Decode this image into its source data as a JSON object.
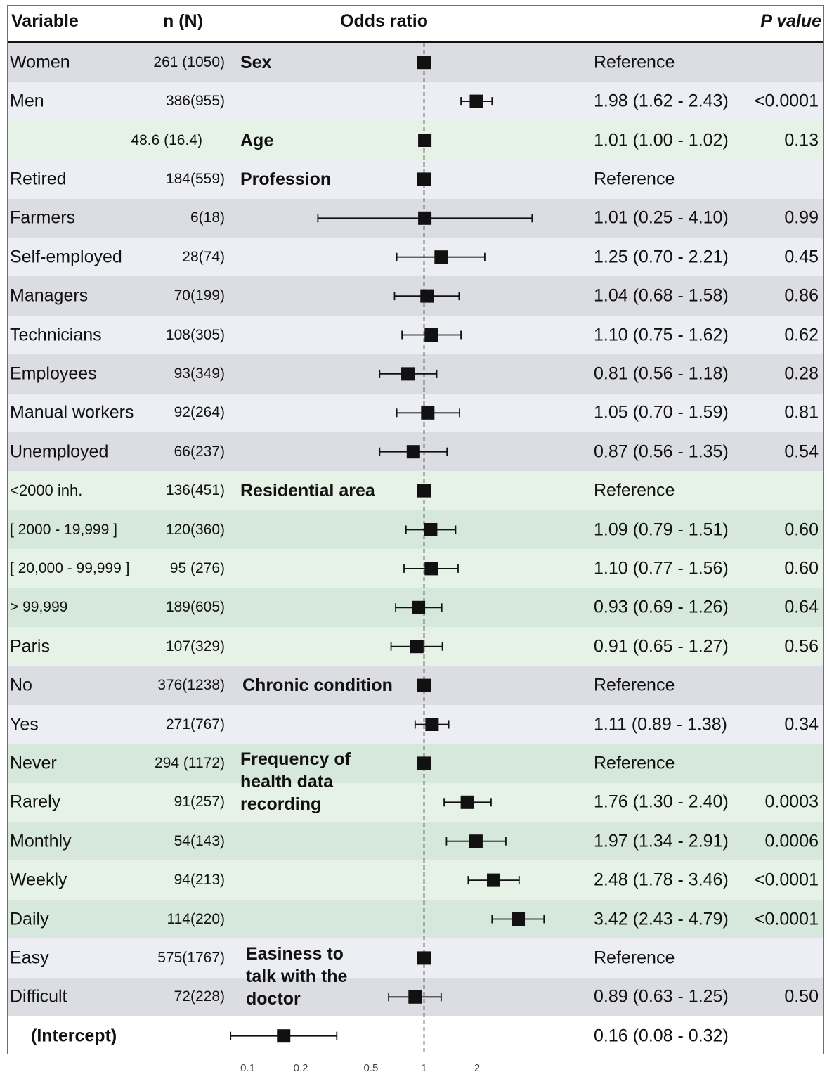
{
  "headers": {
    "variable": "Variable",
    "n": "n (N)",
    "odds_ratio": "Odds ratio",
    "p_value": "P value"
  },
  "colors": {
    "gray_dark": "#dcdde2",
    "gray_light": "#eceef3",
    "green_light": "#e5f2e5",
    "green_dark": "#d6e7db",
    "white": "#ffffff",
    "marker": "#111111",
    "reference_line": "#222222"
  },
  "rows": [
    {
      "label": "Women",
      "n": "261 (1050)",
      "ci": "Reference",
      "p": "",
      "or": 1,
      "lo": null,
      "hi": null,
      "bg": "gray_dark"
    },
    {
      "label": "Men",
      "n": "386(955)",
      "ci": "1.98 (1.62 - 2.43)",
      "p": "<0.0001",
      "or": 1.98,
      "lo": 1.62,
      "hi": 2.43,
      "bg": "gray_light"
    },
    {
      "label": "",
      "n": "48.6 (16.4)",
      "ci": "1.01 (1.00 - 1.02)",
      "p": "0.13",
      "or": 1.01,
      "lo": 1.0,
      "hi": 1.02,
      "bg": "green_light"
    },
    {
      "label": "Retired",
      "n": "184(559)",
      "ci": "Reference",
      "p": "",
      "or": 1,
      "lo": null,
      "hi": null,
      "bg": "gray_light"
    },
    {
      "label": "Farmers",
      "n": "6(18)",
      "ci": "1.01 (0.25 - 4.10)",
      "p": "0.99",
      "or": 1.01,
      "lo": 0.25,
      "hi": 4.1,
      "bg": "gray_dark"
    },
    {
      "label": "Self-employed",
      "n": "28(74)",
      "ci": "1.25 (0.70 - 2.21)",
      "p": "0.45",
      "or": 1.25,
      "lo": 0.7,
      "hi": 2.21,
      "bg": "gray_light"
    },
    {
      "label": "Managers",
      "n": "70(199)",
      "ci": "1.04 (0.68 - 1.58)",
      "p": "0.86",
      "or": 1.04,
      "lo": 0.68,
      "hi": 1.58,
      "bg": "gray_dark"
    },
    {
      "label": "Technicians",
      "n": "108(305)",
      "ci": "1.10 (0.75 - 1.62)",
      "p": "0.62",
      "or": 1.1,
      "lo": 0.75,
      "hi": 1.62,
      "bg": "gray_light"
    },
    {
      "label": "Employees",
      "n": "93(349)",
      "ci": "0.81 (0.56 - 1.18)",
      "p": "0.28",
      "or": 0.81,
      "lo": 0.56,
      "hi": 1.18,
      "bg": "gray_dark"
    },
    {
      "label": "Manual workers",
      "n": "92(264)",
      "ci": "1.05 (0.70 - 1.59)",
      "p": "0.81",
      "or": 1.05,
      "lo": 0.7,
      "hi": 1.59,
      "bg": "gray_light"
    },
    {
      "label": "Unemployed",
      "n": "66(237)",
      "ci": "0.87 (0.56 - 1.35)",
      "p": "0.54",
      "or": 0.87,
      "lo": 0.56,
      "hi": 1.35,
      "bg": "gray_dark"
    },
    {
      "label": "<2000   inh.",
      "n": "136(451)",
      "ci": "Reference",
      "p": "",
      "or": 1,
      "lo": null,
      "hi": null,
      "bg": "green_light"
    },
    {
      "label": "[ 2000 - 19,999 ]",
      "n": "120(360)",
      "ci": "1.09 (0.79 - 1.51)",
      "p": "0.60",
      "or": 1.09,
      "lo": 0.79,
      "hi": 1.51,
      "bg": "green_dark"
    },
    {
      "label": "[ 20,000 - 99,999 ]",
      "n": "95 (276)",
      "ci": "1.10 (0.77 - 1.56)",
      "p": "0.60",
      "or": 1.1,
      "lo": 0.77,
      "hi": 1.56,
      "bg": "green_light"
    },
    {
      "label": "> 99,999",
      "n": "189(605)",
      "ci": "0.93 (0.69 - 1.26)",
      "p": "0.64",
      "or": 0.93,
      "lo": 0.69,
      "hi": 1.26,
      "bg": "green_dark"
    },
    {
      "label": "Paris",
      "n": "107(329)",
      "ci": "0.91 (0.65 - 1.27)",
      "p": "0.56",
      "or": 0.91,
      "lo": 0.65,
      "hi": 1.27,
      "bg": "green_light"
    },
    {
      "label": "No",
      "n": "376(1238)",
      "ci": "Reference",
      "p": "",
      "or": 1,
      "lo": null,
      "hi": null,
      "bg": "gray_dark"
    },
    {
      "label": "Yes",
      "n": "271(767)",
      "ci": "1.11 (0.89 - 1.38)",
      "p": "0.34",
      "or": 1.11,
      "lo": 0.89,
      "hi": 1.38,
      "bg": "gray_light"
    },
    {
      "label": "Never",
      "n": "294 (1172)",
      "ci": "Reference",
      "p": "",
      "or": 1,
      "lo": null,
      "hi": null,
      "bg": "green_dark"
    },
    {
      "label": "Rarely",
      "n": "91(257)",
      "ci": "1.76 (1.30 - 2.40)",
      "p": "0.0003",
      "or": 1.76,
      "lo": 1.3,
      "hi": 2.4,
      "bg": "green_light"
    },
    {
      "label": "Monthly",
      "n": "54(143)",
      "ci": "1.97 (1.34 - 2.91)",
      "p": "0.0006",
      "or": 1.97,
      "lo": 1.34,
      "hi": 2.91,
      "bg": "green_dark"
    },
    {
      "label": "Weekly",
      "n": "94(213)",
      "ci": "2.48 (1.78 - 3.46)",
      "p": "<0.0001",
      "or": 2.48,
      "lo": 1.78,
      "hi": 3.46,
      "bg": "green_light"
    },
    {
      "label": "Daily",
      "n": "114(220)",
      "ci": "3.42 (2.43 - 4.79)",
      "p": "<0.0001",
      "or": 3.42,
      "lo": 2.43,
      "hi": 4.79,
      "bg": "green_dark"
    },
    {
      "label": "Easy",
      "n": "575(1767)",
      "ci": "Reference",
      "p": "",
      "or": 1,
      "lo": null,
      "hi": null,
      "bg": "gray_light"
    },
    {
      "label": "Difficult",
      "n": "72(228)",
      "ci": "0.89 (0.63 - 1.25)",
      "p": "0.50",
      "or": 0.89,
      "lo": 0.63,
      "hi": 1.25,
      "bg": "gray_dark"
    },
    {
      "label": "(Intercept)",
      "n": "",
      "ci": "0.16 (0.08 - 0.32)",
      "p": "",
      "or": 0.16,
      "lo": 0.08,
      "hi": 0.32,
      "bg": "white"
    }
  ],
  "groups": [
    {
      "name": "Sex",
      "row": 0
    },
    {
      "name": "Age",
      "row": 2
    },
    {
      "name": "Profession",
      "row": 3
    },
    {
      "name": "Residential area",
      "row": 11
    },
    {
      "name": "Chronic condition",
      "row": 16
    },
    {
      "name": "Frequency of\nhealth data\nrecording",
      "row": 18
    },
    {
      "name": "Easiness to\ntalk with the\ndoctor",
      "row": 23
    }
  ],
  "chart_data": {
    "type": "scatter",
    "title": "",
    "xlabel": "Odds ratio",
    "ylabel": "",
    "x_scale": "log",
    "xlim": [
      0.07,
      7
    ],
    "x_ticks": [
      0.1,
      0.2,
      0.5,
      1,
      2
    ],
    "x_tick_labels": [
      "0.1",
      "0.2",
      "0.5",
      "1",
      "2"
    ],
    "reference_line": 1,
    "categories": [
      "Women",
      "Men",
      "Age",
      "Retired",
      "Farmers",
      "Self-employed",
      "Managers",
      "Technicians",
      "Employees",
      "Manual workers",
      "Unemployed",
      "<2000 inh.",
      "[ 2000 - 19,999 ]",
      "[ 20,000 - 99,999 ]",
      "> 99,999",
      "Paris",
      "No",
      "Yes",
      "Never",
      "Rarely",
      "Monthly",
      "Weekly",
      "Daily",
      "Easy",
      "Difficult",
      "(Intercept)"
    ],
    "series": [
      {
        "values": [
          1,
          1.98,
          1.01,
          1,
          1.01,
          1.25,
          1.04,
          1.1,
          0.81,
          1.05,
          0.87,
          1,
          1.09,
          1.1,
          0.93,
          0.91,
          1,
          1.11,
          1,
          1.76,
          1.97,
          2.48,
          3.42,
          1,
          0.89,
          0.16
        ],
        "lower": [
          null,
          1.62,
          1.0,
          null,
          0.25,
          0.7,
          0.68,
          0.75,
          0.56,
          0.7,
          0.56,
          null,
          0.79,
          0.77,
          0.69,
          0.65,
          null,
          0.89,
          null,
          1.3,
          1.34,
          1.78,
          2.43,
          null,
          0.63,
          0.08
        ],
        "upper": [
          null,
          2.43,
          1.02,
          null,
          4.1,
          2.21,
          1.58,
          1.62,
          1.18,
          1.59,
          1.35,
          null,
          1.51,
          1.56,
          1.26,
          1.27,
          null,
          1.38,
          null,
          2.4,
          2.91,
          3.46,
          4.79,
          null,
          1.25,
          0.32
        ]
      }
    ]
  }
}
